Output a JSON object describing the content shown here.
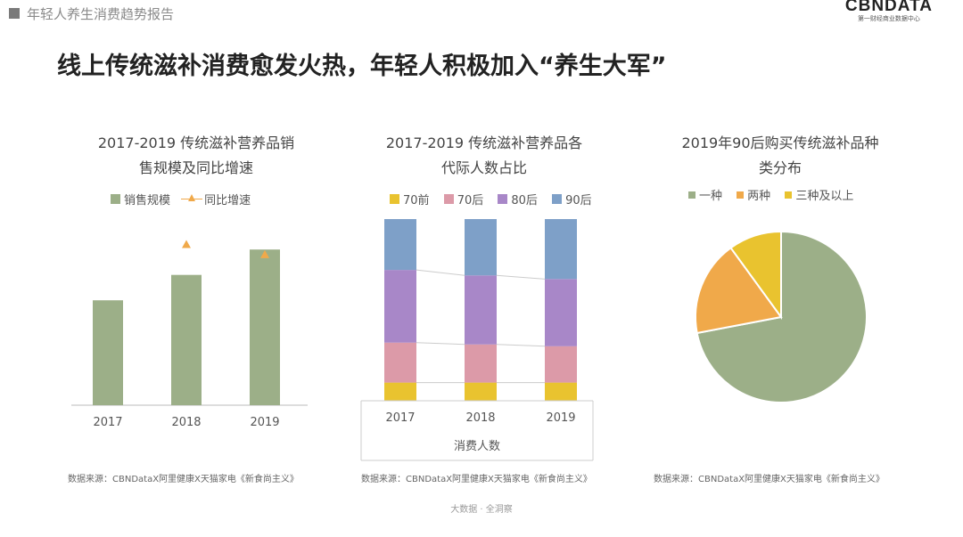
{
  "header": {
    "report_title": "年轻人养生消费趋势报告",
    "logo_main": "CBNDATA",
    "logo_sub": "第一财经商业数据中心"
  },
  "main_title": "线上传统滋补消费愈发火热，年轻人积极加入“养生大军”",
  "footer": "大数据 · 全洞察",
  "colors": {
    "green": "#9caf88",
    "orange": "#f0a94a",
    "yellow": "#e9c32f",
    "pink": "#dc9aa8",
    "purple": "#a887c8",
    "blue": "#7ea0c8"
  },
  "chart_data": [
    {
      "type": "bar",
      "title_line1": "2017-2019 传统滋补营养品销",
      "title_line2": "售规模及同比增速",
      "legend": [
        "销售规模",
        "同比增速"
      ],
      "categories": [
        "2017",
        "2018",
        "2019"
      ],
      "series": [
        {
          "name": "销售规模",
          "values": [
            62,
            77,
            92
          ]
        },
        {
          "name": "同比增速",
          "values": [
            null,
            95,
            89
          ]
        }
      ],
      "ylim": [
        0,
        100
      ],
      "source": "数据来源：CBNDataX阿里健康X天猫家电《新食尚主义》"
    },
    {
      "type": "bar",
      "stacked": true,
      "title_line1": "2017-2019 传统滋补营养品各",
      "title_line2": "代际人数占比",
      "legend": [
        "70前",
        "70后",
        "80后",
        "90后"
      ],
      "categories": [
        "2017",
        "2018",
        "2019"
      ],
      "series": [
        {
          "name": "70前",
          "values": [
            10,
            10,
            10
          ]
        },
        {
          "name": "70后",
          "values": [
            22,
            21,
            20
          ]
        },
        {
          "name": "80后",
          "values": [
            40,
            38,
            37
          ]
        },
        {
          "name": "90后",
          "values": [
            28,
            31,
            33
          ]
        }
      ],
      "ylim": [
        0,
        100
      ],
      "xlabel": "消费人数",
      "source": "数据来源：CBNDataX阿里健康X天猫家电《新食尚主义》"
    },
    {
      "type": "pie",
      "title_line1": "2019年90后购买传统滋补品种",
      "title_line2": "类分布",
      "legend": [
        "一种",
        "两种",
        "三种及以上"
      ],
      "values": [
        72,
        18,
        10
      ],
      "source": "数据来源：CBNDataX阿里健康X天猫家电《新食尚主义》"
    }
  ]
}
